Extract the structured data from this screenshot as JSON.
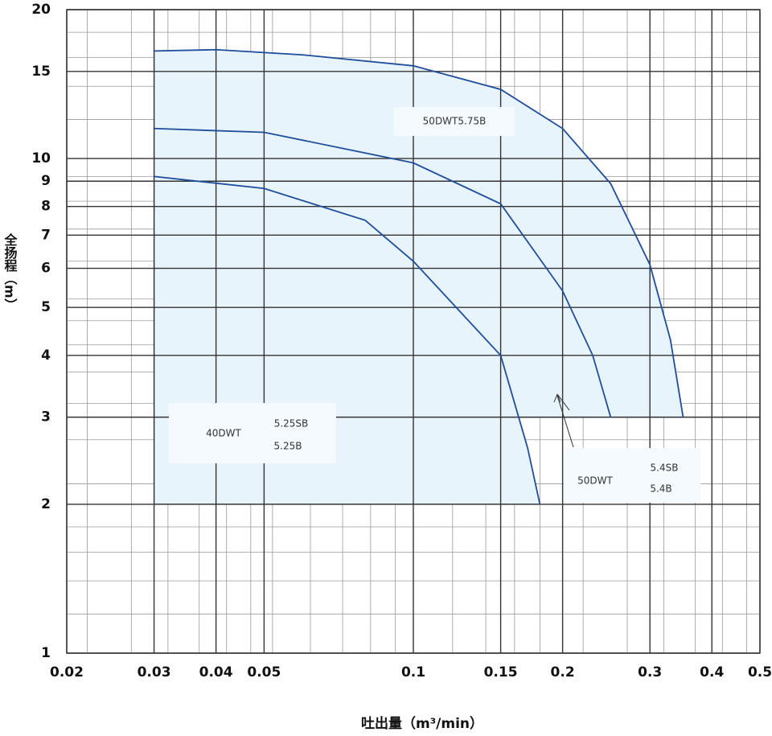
{
  "chart_data": {
    "type": "line",
    "x_label": "吐出量（m³/min）",
    "y_label": "全扬程（m）",
    "log_x": true,
    "log_y": true,
    "grid": true,
    "xlim": [
      0.02,
      0.5
    ],
    "ylim": [
      1,
      20
    ],
    "xticks": [
      0.02,
      0.03,
      0.04,
      0.05,
      0.1,
      0.15,
      0.2,
      0.3,
      0.4,
      0.5
    ],
    "yticks": [
      1,
      2,
      3,
      4,
      5,
      6,
      7,
      8,
      9,
      10,
      15,
      20
    ],
    "fill_color": "#e8f4fb",
    "series": [
      {
        "color": "#1f4e9c",
        "x": [
          0.03,
          0.04,
          0.06,
          0.1,
          0.15,
          0.2,
          0.25,
          0.3,
          0.33,
          0.35
        ],
        "values": [
          16.5,
          16.6,
          16.2,
          15.4,
          13.8,
          11.5,
          8.9,
          6.1,
          4.3,
          3.0
        ]
      },
      {
        "color": "#1f4e9c",
        "x": [
          0.03,
          0.05,
          0.1,
          0.15,
          0.2,
          0.23,
          0.25
        ],
        "values": [
          11.5,
          11.3,
          9.8,
          8.1,
          5.4,
          4.0,
          3.0
        ]
      },
      {
        "color": "#1f4e9c",
        "x": [
          0.03,
          0.05,
          0.08,
          0.1,
          0.15,
          0.17,
          0.18
        ],
        "values": [
          9.2,
          8.7,
          7.5,
          6.2,
          4.0,
          2.6,
          2.0
        ]
      }
    ],
    "annotations": [
      {
        "lines": [
          "50DWT5.75B"
        ]
      },
      {
        "lines": [
          "40DWT",
          "5.25SB",
          "5.25B"
        ]
      },
      {
        "lines": [
          "50DWT",
          "5.4SB",
          "5.4B"
        ]
      }
    ]
  }
}
